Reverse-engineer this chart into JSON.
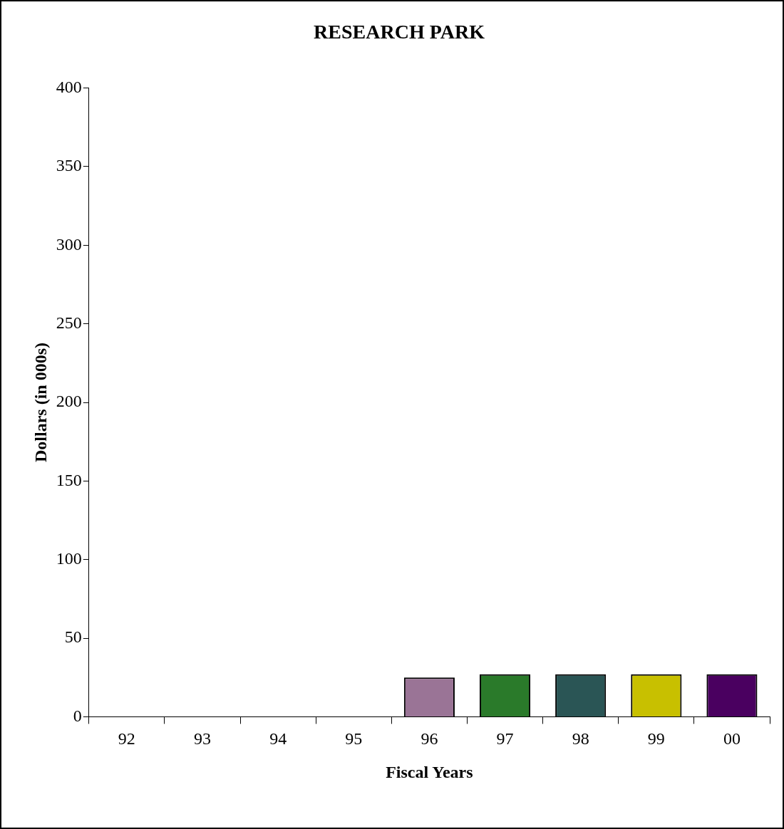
{
  "chart_data": {
    "type": "bar",
    "title": "RESEARCH PARK",
    "xlabel": "Fiscal Years",
    "ylabel": "Dollars (in 000s)",
    "categories": [
      "92",
      "93",
      "94",
      "95",
      "96",
      "97",
      "98",
      "99",
      "00"
    ],
    "values": [
      0,
      0,
      0,
      0,
      25,
      27,
      27,
      27,
      27
    ],
    "colors": [
      "#9a7496",
      "#9a7496",
      "#9a7496",
      "#9a7496",
      "#9a7496",
      "#2a7a2a",
      "#2a5555",
      "#c8c000",
      "#4a0060"
    ],
    "ylim": [
      0,
      400
    ],
    "yticks": [
      0,
      50,
      100,
      150,
      200,
      250,
      300,
      350,
      400
    ],
    "grid": false,
    "legend": false
  }
}
